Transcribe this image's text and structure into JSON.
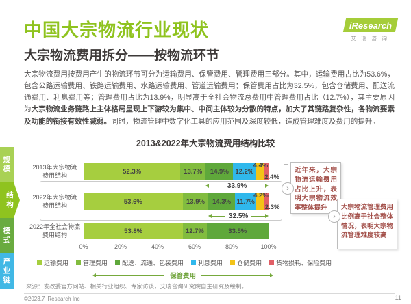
{
  "page": {
    "title": "中国大宗物流行业现状",
    "subtitle": "大宗物流费用拆分——按物流环节",
    "source": "来源：发改委官方网站、相关行业组织、专家访谈，艾瑞咨询研究院自主研究及绘制。",
    "copyright": "©2023.7 iResearch Inc",
    "page_number": "11"
  },
  "logo": {
    "name": "iResearch",
    "subtext": "艾瑞咨询"
  },
  "icons": {
    "chevron_right": "›"
  },
  "sidebar": {
    "items": [
      {
        "label": "规模",
        "color": "#a9d155",
        "active": false
      },
      {
        "label": "结构",
        "color": "#8fc31f",
        "active": true
      },
      {
        "label": "模式",
        "color": "#69ab3f",
        "active": false
      },
      {
        "label": "产业链",
        "color": "#41b8e5",
        "active": false
      }
    ]
  },
  "paragraph": {
    "part1": "大宗物流费用按费用产生的物流环节可分为运输费用、保管费用、管理费用三部分。其中，运输费用占比为53.6%，包含公路运输费用、铁路运输费用、水路运输费用、管道运输费用；保管费用占比为32.5%，包含仓储费用、配送流通费用、利息费用等；管理费用占比为13.9%，明显高于全社会物流总费用中管理费用占比（12.7%），其主要原因为",
    "bold": "大宗物流业务链路上主体格局呈现上下游较为集中、中间主体较为分散的特点，加大了其链路复杂性，各物流要素及功能的衔接有效性减弱。",
    "part2": "同时，物流管理中数字化工具的应用范围及深度较低，造成管理难度及费用的提升。"
  },
  "chart_data": {
    "type": "bar",
    "orientation": "horizontal-stacked",
    "title": "2013&2022年大宗物流费用结构比较",
    "categories": [
      "2013年大宗物流费用结构",
      "2022年大宗物流费用结构",
      "2022年全社会物流费用结构"
    ],
    "series": [
      {
        "name": "运输费用",
        "color": "#a6ce3f",
        "values": [
          52.3,
          53.6,
          53.8
        ]
      },
      {
        "name": "管理费用",
        "color": "#82bc3f",
        "values": [
          13.7,
          13.9,
          12.7
        ]
      },
      {
        "name": "配送、流通、包装费用",
        "color": "#5fa83b",
        "values": [
          14.9,
          14.3,
          33.5
        ]
      },
      {
        "name": "利息费用",
        "color": "#30b8ec",
        "values": [
          12.2,
          11.7,
          null
        ]
      },
      {
        "name": "仓储费用",
        "color": "#f3c318",
        "values": [
          4.4,
          4.2,
          null
        ]
      },
      {
        "name": "货物损耗、保险费用",
        "color": "#e15f66",
        "values": [
          2.4,
          2.3,
          null
        ]
      }
    ],
    "annotations": {
      "measures": [
        {
          "row": 0,
          "label": "33.9%"
        },
        {
          "row": 1,
          "label": "32.5%"
        }
      ],
      "storage_label": "保管费用"
    },
    "x_ticks": [
      "0%",
      "20%",
      "40%",
      "60%",
      "80%",
      "100%"
    ],
    "xlim": [
      0,
      100
    ],
    "legend_position": "bottom"
  },
  "callouts": [
    {
      "text": "近年来，大宗物流运输费用占比上升，表明大宗物流效率整体提升"
    },
    {
      "text": "大宗物流管理费用比例高于社会整体情况，表明大宗物流管理难度较高"
    }
  ]
}
